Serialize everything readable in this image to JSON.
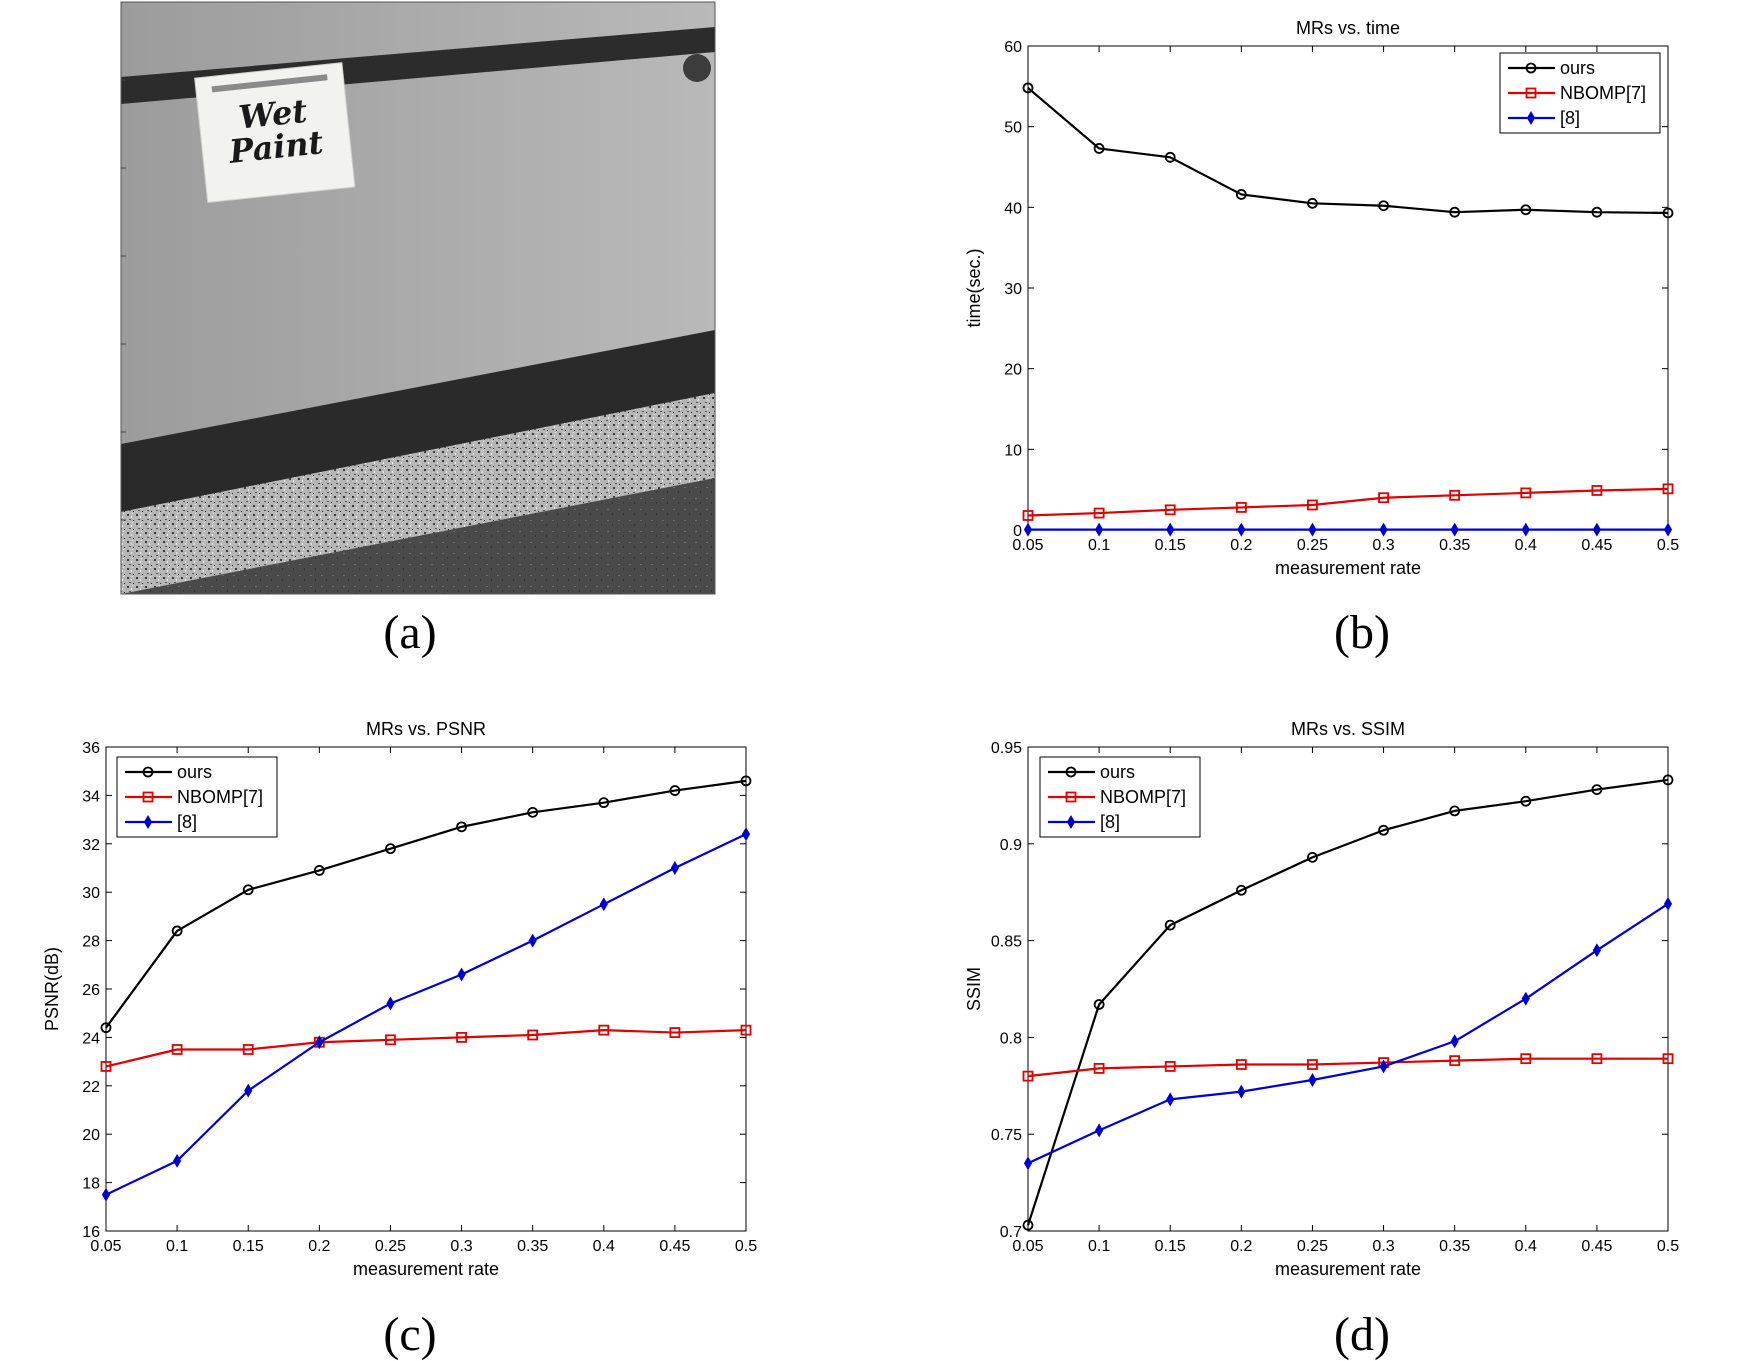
{
  "captions": {
    "a": "(a)",
    "b": "(b)",
    "c": "(c)",
    "d": "(d)"
  },
  "photo": {
    "sign_text_line1": "Wet",
    "sign_text_line2": "Paint"
  },
  "chart_data": [
    {
      "id": "b",
      "type": "line",
      "title": "MRs  vs.  time",
      "xlabel": "measurement rate",
      "ylabel": "time(sec.)",
      "x": [
        0.05,
        0.1,
        0.15,
        0.2,
        0.25,
        0.3,
        0.35,
        0.4,
        0.45,
        0.5
      ],
      "xticks": [
        "0.05",
        "0.1",
        "0.15",
        "0.2",
        "0.25",
        "0.3",
        "0.35",
        "0.4",
        "0.45",
        "0.5"
      ],
      "yticks": [
        "0",
        "10",
        "20",
        "30",
        "40",
        "50",
        "60"
      ],
      "ytick_values": [
        0,
        10,
        20,
        30,
        40,
        50,
        60
      ],
      "xlim": [
        0.05,
        0.5
      ],
      "ylim": [
        0,
        60
      ],
      "legend_position": "top-right",
      "series": [
        {
          "name": "ours",
          "color": "#000000",
          "marker": "circle",
          "values": [
            54.8,
            47.3,
            46.2,
            41.6,
            40.5,
            40.2,
            39.4,
            39.7,
            39.4,
            39.3
          ]
        },
        {
          "name": "NBOMP[7]",
          "color": "#e00000",
          "marker": "square",
          "values": [
            1.8,
            2.1,
            2.5,
            2.8,
            3.1,
            4.0,
            4.3,
            4.6,
            4.9,
            5.1
          ]
        },
        {
          "name": "[8]",
          "color": "#0000d0",
          "marker": "diamond",
          "values": [
            0.05,
            0.05,
            0.05,
            0.05,
            0.05,
            0.05,
            0.05,
            0.05,
            0.05,
            0.05
          ]
        }
      ]
    },
    {
      "id": "c",
      "type": "line",
      "title": "MRs  vs.  PSNR",
      "xlabel": "measurement rate",
      "ylabel": "PSNR(dB)",
      "x": [
        0.05,
        0.1,
        0.15,
        0.2,
        0.25,
        0.3,
        0.35,
        0.4,
        0.45,
        0.5
      ],
      "xticks": [
        "0.05",
        "0.1",
        "0.15",
        "0.2",
        "0.25",
        "0.3",
        "0.35",
        "0.4",
        "0.45",
        "0.5"
      ],
      "yticks": [
        "16",
        "18",
        "20",
        "22",
        "24",
        "26",
        "28",
        "30",
        "32",
        "34",
        "36"
      ],
      "ytick_values": [
        16,
        18,
        20,
        22,
        24,
        26,
        28,
        30,
        32,
        34,
        36
      ],
      "xlim": [
        0.05,
        0.5
      ],
      "ylim": [
        16,
        36
      ],
      "legend_position": "top-left",
      "series": [
        {
          "name": "ours",
          "color": "#000000",
          "marker": "circle",
          "values": [
            24.4,
            28.4,
            30.1,
            30.9,
            31.8,
            32.7,
            33.3,
            33.7,
            34.2,
            34.6
          ]
        },
        {
          "name": "NBOMP[7]",
          "color": "#e00000",
          "marker": "square",
          "values": [
            22.8,
            23.5,
            23.5,
            23.8,
            23.9,
            24.0,
            24.1,
            24.3,
            24.2,
            24.3
          ]
        },
        {
          "name": "[8]",
          "color": "#0000d0",
          "marker": "diamond",
          "values": [
            17.5,
            18.9,
            21.8,
            23.8,
            25.4,
            26.6,
            28.0,
            29.5,
            31.0,
            32.4
          ]
        }
      ]
    },
    {
      "id": "d",
      "type": "line",
      "title": "MRs  vs.  SSIM",
      "xlabel": "measurement rate",
      "ylabel": "SSIM",
      "x": [
        0.05,
        0.1,
        0.15,
        0.2,
        0.25,
        0.3,
        0.35,
        0.4,
        0.45,
        0.5
      ],
      "xticks": [
        "0.05",
        "0.1",
        "0.15",
        "0.2",
        "0.25",
        "0.3",
        "0.35",
        "0.4",
        "0.45",
        "0.5"
      ],
      "yticks": [
        "0.7",
        "0.75",
        "0.8",
        "0.85",
        "0.9",
        "0.95"
      ],
      "ytick_values": [
        0.7,
        0.75,
        0.8,
        0.85,
        0.9,
        0.95
      ],
      "xlim": [
        0.05,
        0.5
      ],
      "ylim": [
        0.7,
        0.95
      ],
      "legend_position": "top-left",
      "series": [
        {
          "name": "ours",
          "color": "#000000",
          "marker": "circle",
          "values": [
            0.703,
            0.817,
            0.858,
            0.876,
            0.893,
            0.907,
            0.917,
            0.922,
            0.928,
            0.933
          ]
        },
        {
          "name": "NBOMP[7]",
          "color": "#e00000",
          "marker": "square",
          "values": [
            0.78,
            0.784,
            0.785,
            0.786,
            0.786,
            0.787,
            0.788,
            0.789,
            0.789,
            0.789
          ]
        },
        {
          "name": "[8]",
          "color": "#0000d0",
          "marker": "diamond",
          "values": [
            0.735,
            0.752,
            0.768,
            0.772,
            0.778,
            0.785,
            0.798,
            0.82,
            0.845,
            0.869
          ]
        }
      ]
    }
  ]
}
